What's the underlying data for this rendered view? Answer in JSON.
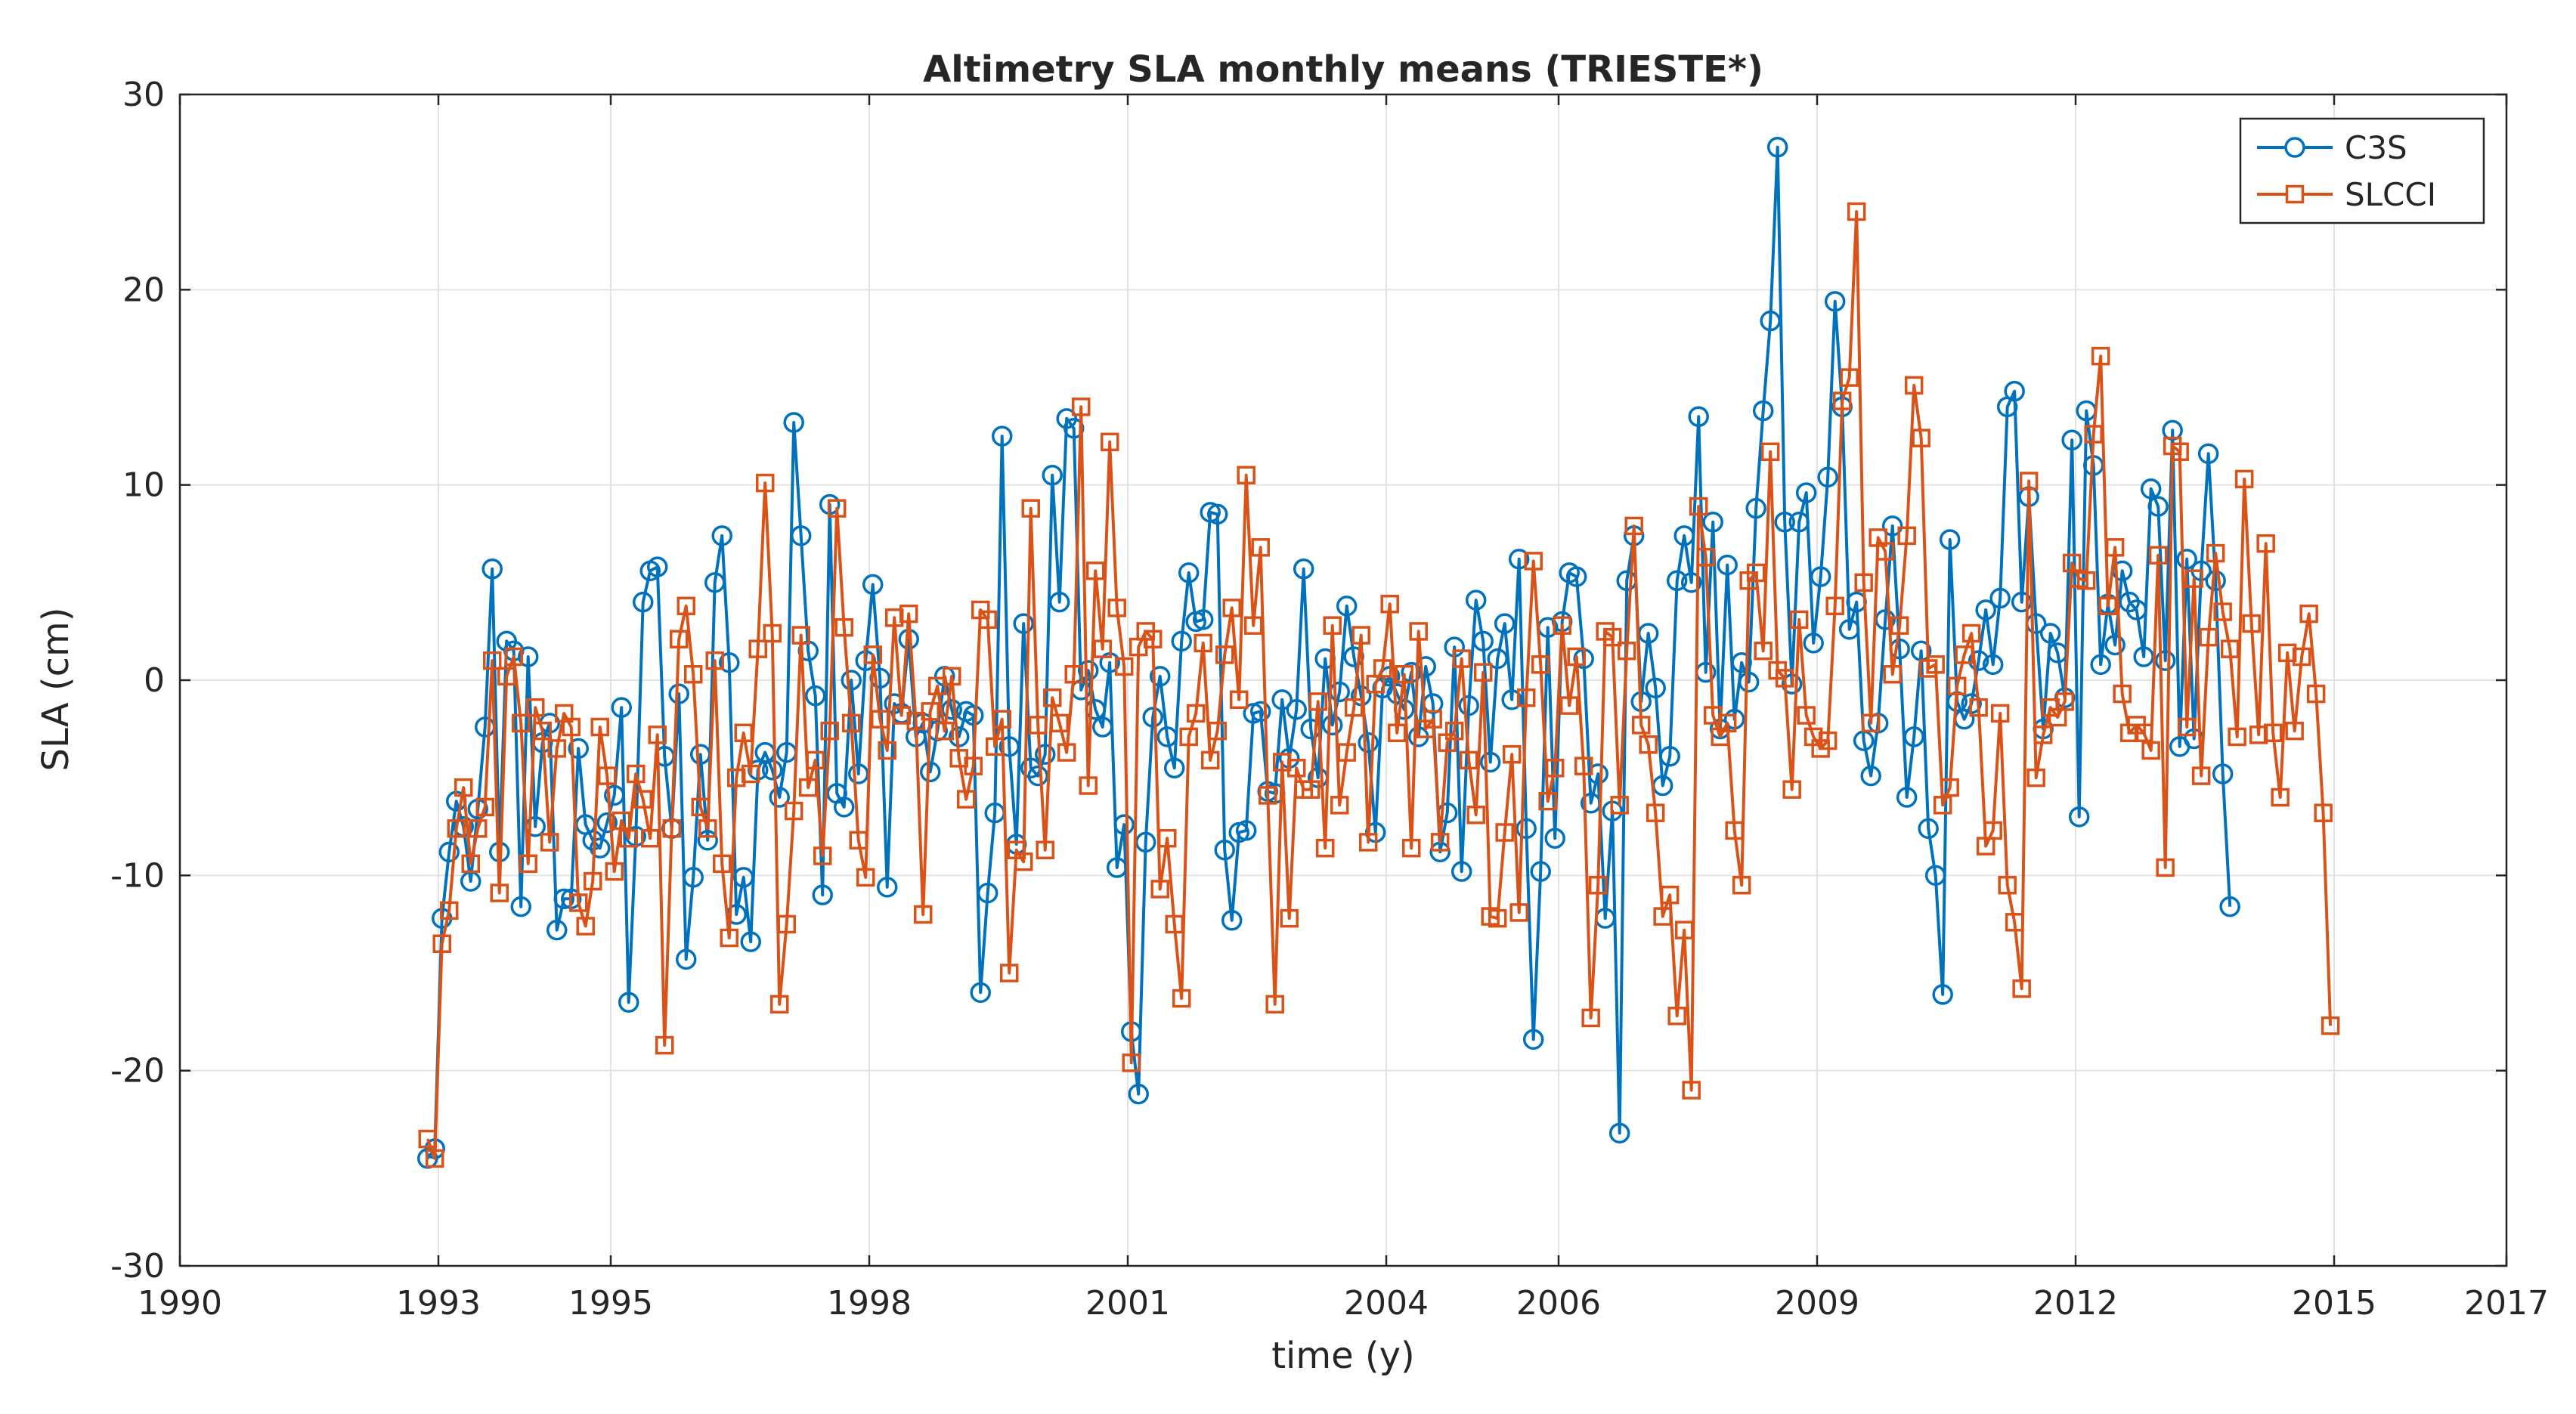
{
  "chart_data": {
    "type": "line",
    "title": "Altimetry SLA monthly means (TRIESTE*)",
    "xlabel": "time (y)",
    "ylabel": "SLA (cm)",
    "xlim": [
      1990,
      2017
    ],
    "ylim": [
      -30,
      30
    ],
    "x_ticks": [
      1990,
      1993,
      1995,
      1998,
      2001,
      2004,
      2006,
      2009,
      2012,
      2015,
      2017
    ],
    "x_tick_labels": [
      "1990",
      "1993",
      "1995",
      "1998",
      "2001",
      "2004",
      "2006",
      "2009",
      "2012",
      "2015",
      "2017"
    ],
    "y_ticks": [
      -30,
      -20,
      -10,
      0,
      10,
      20,
      30
    ],
    "y_tick_labels": [
      "-30",
      "-20",
      "-10",
      "0",
      "10",
      "20",
      "30"
    ],
    "grid": true,
    "legend_position": "top-right",
    "x_start": 1992.875,
    "x_step": 0.08333,
    "series": [
      {
        "name": "C3S",
        "color": "#0072BD",
        "marker": "circle",
        "values": [
          -24.5,
          -24,
          -12.2,
          -8.8,
          -6.2,
          -7.5,
          -10.3,
          -6.6,
          -2.4,
          5.7,
          -8.8,
          2.0,
          1.5,
          -11.6,
          1.2,
          -7.5,
          -3.2,
          -2.2,
          -12.8,
          -11.2,
          -11.2,
          -3.5,
          -7.4,
          -8.2,
          -8.6,
          -7.3,
          -5.9,
          -1.4,
          -16.5,
          -8.0,
          4.0,
          5.6,
          5.8,
          -3.9,
          -7.6,
          -0.7,
          -14.3,
          -10.1,
          -3.8,
          -8.2,
          5.0,
          7.4,
          0.9,
          -12.0,
          -10.1,
          -13.4,
          -4.6,
          -3.7,
          -4.6,
          -6.0,
          -3.7,
          13.2,
          7.4,
          1.5,
          -0.8,
          -11.0,
          9.0,
          -5.8,
          -6.5,
          0.0,
          -4.8,
          1.0,
          4.9,
          0.1,
          -10.6,
          -1.2,
          -1.7,
          2.1,
          -2.9,
          -2.2,
          -4.7,
          -2.6,
          0.2,
          -1.5,
          -2.9,
          -1.6,
          -1.8,
          -16.0,
          -10.9,
          -6.8,
          12.5,
          -3.4,
          -8.4,
          2.9,
          -4.5,
          -4.9,
          -3.8,
          10.5,
          4.0,
          13.4,
          12.9,
          -0.5,
          0.5,
          -1.5,
          -2.4,
          0.9,
          -9.6,
          -7.4,
          -18.0,
          -21.2,
          -8.3,
          -1.9,
          0.2,
          -2.9,
          -4.5,
          2.0,
          5.5,
          3.0,
          3.1,
          8.6,
          8.5,
          -8.7,
          -12.3,
          -7.8,
          -7.7,
          -1.7,
          -1.6,
          -5.7,
          -5.8,
          -1.0,
          -4.0,
          -1.5,
          5.7,
          -2.5,
          -5.0,
          1.1,
          -2.3,
          -0.6,
          3.8,
          1.2,
          -0.8,
          -3.2,
          -7.8,
          -0.4,
          0.2,
          -0.7,
          -1.5,
          0.4,
          -2.9,
          0.7,
          -1.2,
          -8.8,
          -6.8,
          1.7,
          -9.8,
          -1.3,
          4.1,
          2.0,
          -4.2,
          1.1,
          2.9,
          -1.0,
          6.2,
          -7.6,
          -18.4,
          -9.8,
          2.7,
          -8.1,
          3.0,
          5.5,
          5.3,
          1.1,
          -6.3,
          -4.8,
          -12.2,
          -6.7,
          -23.2,
          5.1,
          7.4,
          -1.1,
          2.4,
          -0.4,
          -5.4,
          -3.9,
          5.1,
          7.4,
          5.0,
          13.5,
          0.4,
          8.1,
          -2.5,
          5.9,
          -2.0,
          0.9,
          -0.1,
          8.8,
          13.8,
          18.4,
          27.3,
          8.1,
          -0.2,
          8.1,
          9.6,
          1.9,
          5.3,
          10.4,
          19.4,
          14.0,
          2.6,
          4.0,
          -3.1,
          -4.9,
          -2.2,
          3.1,
          7.9,
          1.6,
          -6.0,
          -2.9,
          1.5,
          -7.6,
          -10.0,
          -16.1,
          7.2,
          -1.1,
          -2.0,
          -1.2,
          1.0,
          3.6,
          0.8,
          4.2,
          14.0,
          14.8,
          4.0,
          9.4,
          2.9,
          -2.5,
          2.4,
          1.4,
          -0.9,
          12.3,
          -7.0,
          13.8,
          11.0,
          0.8,
          3.9,
          1.8,
          5.6,
          4.0,
          3.6,
          1.2,
          9.8,
          8.9,
          1.0,
          12.8,
          -3.4,
          6.2,
          -3.0,
          5.6,
          11.6,
          5.1,
          -4.8,
          -11.6
        ]
      },
      {
        "name": "SLCCI",
        "color": "#D95319",
        "marker": "square",
        "values": [
          -23.5,
          -24.5,
          -13.5,
          -11.8,
          -7.6,
          -5.5,
          -9.4,
          -7.6,
          -6.5,
          1.0,
          -10.9,
          0.2,
          1.2,
          -2.2,
          -9.4,
          -1.4,
          -2.6,
          -8.3,
          -3.5,
          -1.7,
          -2.4,
          -11.4,
          -12.6,
          -10.3,
          -2.4,
          -4.9,
          -9.8,
          -7.2,
          -8.1,
          -4.8,
          -6.1,
          -8.1,
          -2.8,
          -18.7,
          -7.6,
          2.1,
          3.8,
          0.3,
          -6.5,
          -7.6,
          1.0,
          -9.4,
          -13.2,
          -5.0,
          -2.7,
          -4.8,
          1.6,
          10.1,
          2.4,
          -16.6,
          -12.5,
          -6.7,
          2.3,
          -5.5,
          -4.1,
          -9.0,
          -2.6,
          8.8,
          2.7,
          -2.2,
          -8.2,
          -10.1,
          1.3,
          -2.0,
          -3.6,
          3.2,
          -1.8,
          3.4,
          -2.1,
          -12.0,
          -1.6,
          -0.3,
          -2.6,
          0.2,
          -4.0,
          -6.1,
          -4.4,
          3.6,
          3.1,
          -3.4,
          -2.0,
          -15.0,
          -8.7,
          -9.3,
          8.8,
          -2.3,
          -8.7,
          -0.9,
          -2.2,
          -3.7,
          0.3,
          14.0,
          -5.4,
          5.6,
          1.6,
          12.2,
          3.7,
          0.7,
          -19.6,
          1.7,
          2.5,
          2.1,
          -10.7,
          -8.1,
          -12.5,
          -16.3,
          -2.9,
          -1.7,
          1.9,
          -4.1,
          -2.6,
          1.3,
          3.7,
          -1.0,
          10.5,
          2.8,
          6.8,
          -5.9,
          -16.6,
          -4.2,
          -12.2,
          -4.5,
          -5.6,
          -5.6,
          -1.1,
          -8.6,
          2.8,
          -6.4,
          -3.7,
          -1.4,
          2.3,
          -8.3,
          -0.2,
          0.6,
          3.9,
          -2.7,
          0.3,
          -8.6,
          2.5,
          -2.5,
          -2.0,
          -8.3,
          -3.2,
          -2.6,
          1.1,
          -4.1,
          -6.9,
          0.4,
          -12.1,
          -12.2,
          -7.8,
          -3.8,
          -11.9,
          -0.9,
          6.1,
          0.8,
          -6.2,
          -4.5,
          2.8,
          -1.3,
          1.2,
          -4.4,
          -17.3,
          -10.5,
          2.5,
          2.2,
          -6.4,
          1.5,
          7.9,
          -2.3,
          -3.3,
          -6.8,
          -12.1,
          -11.0,
          -17.2,
          -12.8,
          -21.0,
          8.9,
          6.3,
          -1.8,
          -2.9,
          -2.2,
          -7.7,
          -10.5,
          5.1,
          5.5,
          1.5,
          11.7,
          0.5,
          0.1,
          -5.6,
          3.1,
          -1.8,
          -2.9,
          -3.5,
          -3.1,
          3.8,
          14.3,
          15.5,
          24.0,
          5.0,
          -2.2,
          7.3,
          6.6,
          0.3,
          2.8,
          7.4,
          15.1,
          12.4,
          0.6,
          0.8,
          -6.4,
          -5.5,
          -0.3,
          1.3,
          2.4,
          -1.4,
          -8.5,
          -7.7,
          -1.7,
          -10.5,
          -12.4,
          -15.8,
          10.2,
          -5.0,
          -2.8,
          -1.4,
          -1.9,
          -1.1,
          6.0,
          5.2,
          5.1,
          12.6,
          16.6,
          3.8,
          6.8,
          -0.7,
          -2.7,
          -2.3,
          -2.7,
          -3.6,
          6.4,
          -9.6,
          12.0,
          11.7,
          -2.4,
          5.2,
          -4.9,
          2.2,
          6.5,
          3.5,
          1.6,
          -2.9,
          10.3,
          2.9,
          -2.8,
          7.0,
          -2.7,
          -6.0,
          1.4,
          -2.6,
          1.2,
          3.4,
          -0.7,
          -6.8,
          -17.7
        ]
      }
    ]
  }
}
